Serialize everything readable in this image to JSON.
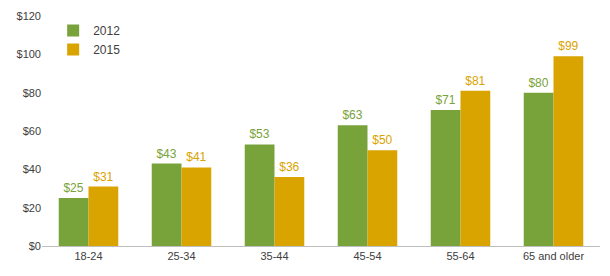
{
  "chart_data": {
    "type": "bar",
    "categories": [
      "18-24",
      "25-34",
      "35-44",
      "45-54",
      "55-64",
      "65 and older"
    ],
    "series": [
      {
        "name": "2012",
        "color": "#78a23a",
        "values": [
          25,
          43,
          53,
          63,
          71,
          80
        ],
        "value_labels": [
          "$25",
          "$43",
          "$53",
          "$63",
          "$71",
          "$80"
        ]
      },
      {
        "name": "2015",
        "color": "#d9a300",
        "values": [
          31,
          41,
          36,
          50,
          81,
          99
        ],
        "value_labels": [
          "$31",
          "$41",
          "$36",
          "$50",
          "$81",
          "$99"
        ]
      }
    ],
    "ylim": [
      0,
      120
    ],
    "yticks": [
      {
        "value": 0,
        "label": "$0"
      },
      {
        "value": 20,
        "label": "$20"
      },
      {
        "value": 40,
        "label": "$40"
      },
      {
        "value": 60,
        "label": "$60"
      },
      {
        "value": 80,
        "label": "$80"
      },
      {
        "value": 100,
        "label": "$100"
      },
      {
        "value": 120,
        "label": "$120"
      }
    ],
    "grid": false,
    "legend": "top-left",
    "data_labels": true
  }
}
